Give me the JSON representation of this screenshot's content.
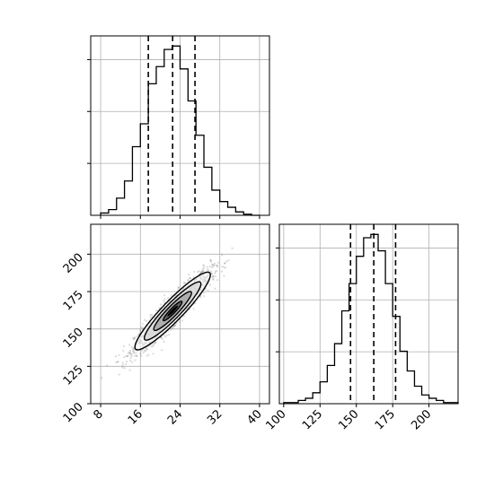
{
  "chart_data": {
    "type": "corner",
    "parameters": [
      "",
      ""
    ],
    "hist_a": {
      "type": "histogram",
      "xlim": [
        6,
        42
      ],
      "bin_edges": [
        8,
        9.6,
        11.2,
        12.8,
        14.4,
        16,
        17.6,
        19.2,
        20.8,
        22.4,
        24,
        25.6,
        27.2,
        28.8,
        30.4,
        32,
        33.6,
        35.2,
        36.8,
        38.4,
        40
      ],
      "counts": [
        2,
        5,
        15,
        30,
        60,
        80,
        115,
        130,
        145,
        148,
        128,
        100,
        70,
        42,
        22,
        12,
        7,
        3,
        1,
        0
      ],
      "quantiles": [
        17.6,
        22.5,
        27
      ],
      "yticks_count": 3,
      "grid": true
    },
    "hist_b": {
      "type": "histogram",
      "xlim": [
        97,
        220
      ],
      "xticks": [
        "100",
        "125",
        "150",
        "175",
        "200"
      ],
      "bin_edges": [
        100,
        105,
        110,
        115,
        120,
        125,
        130,
        135,
        140,
        145,
        150,
        155,
        160,
        165,
        170,
        175,
        180,
        185,
        190,
        195,
        200,
        205,
        210,
        215,
        220
      ],
      "counts": [
        1,
        1,
        3,
        5,
        10,
        20,
        35,
        55,
        85,
        110,
        135,
        152,
        155,
        140,
        110,
        80,
        48,
        30,
        16,
        8,
        5,
        3,
        1,
        1
      ],
      "quantiles": [
        146,
        162,
        177
      ],
      "yticks_count": 3,
      "grid": true
    },
    "density_2d": {
      "type": "scatter-density",
      "xlim": [
        6,
        42
      ],
      "ylim": [
        100,
        220
      ],
      "xticks": [
        "8",
        "16",
        "24",
        "32",
        "40"
      ],
      "yticks": [
        "100",
        "125",
        "150",
        "175",
        "200"
      ],
      "mean": [
        22.5,
        162
      ],
      "std": [
        3.8,
        13
      ],
      "correlation": 0.93,
      "contour_levels_sigma": [
        0.5,
        1,
        1.5,
        2
      ],
      "grid": true
    }
  }
}
